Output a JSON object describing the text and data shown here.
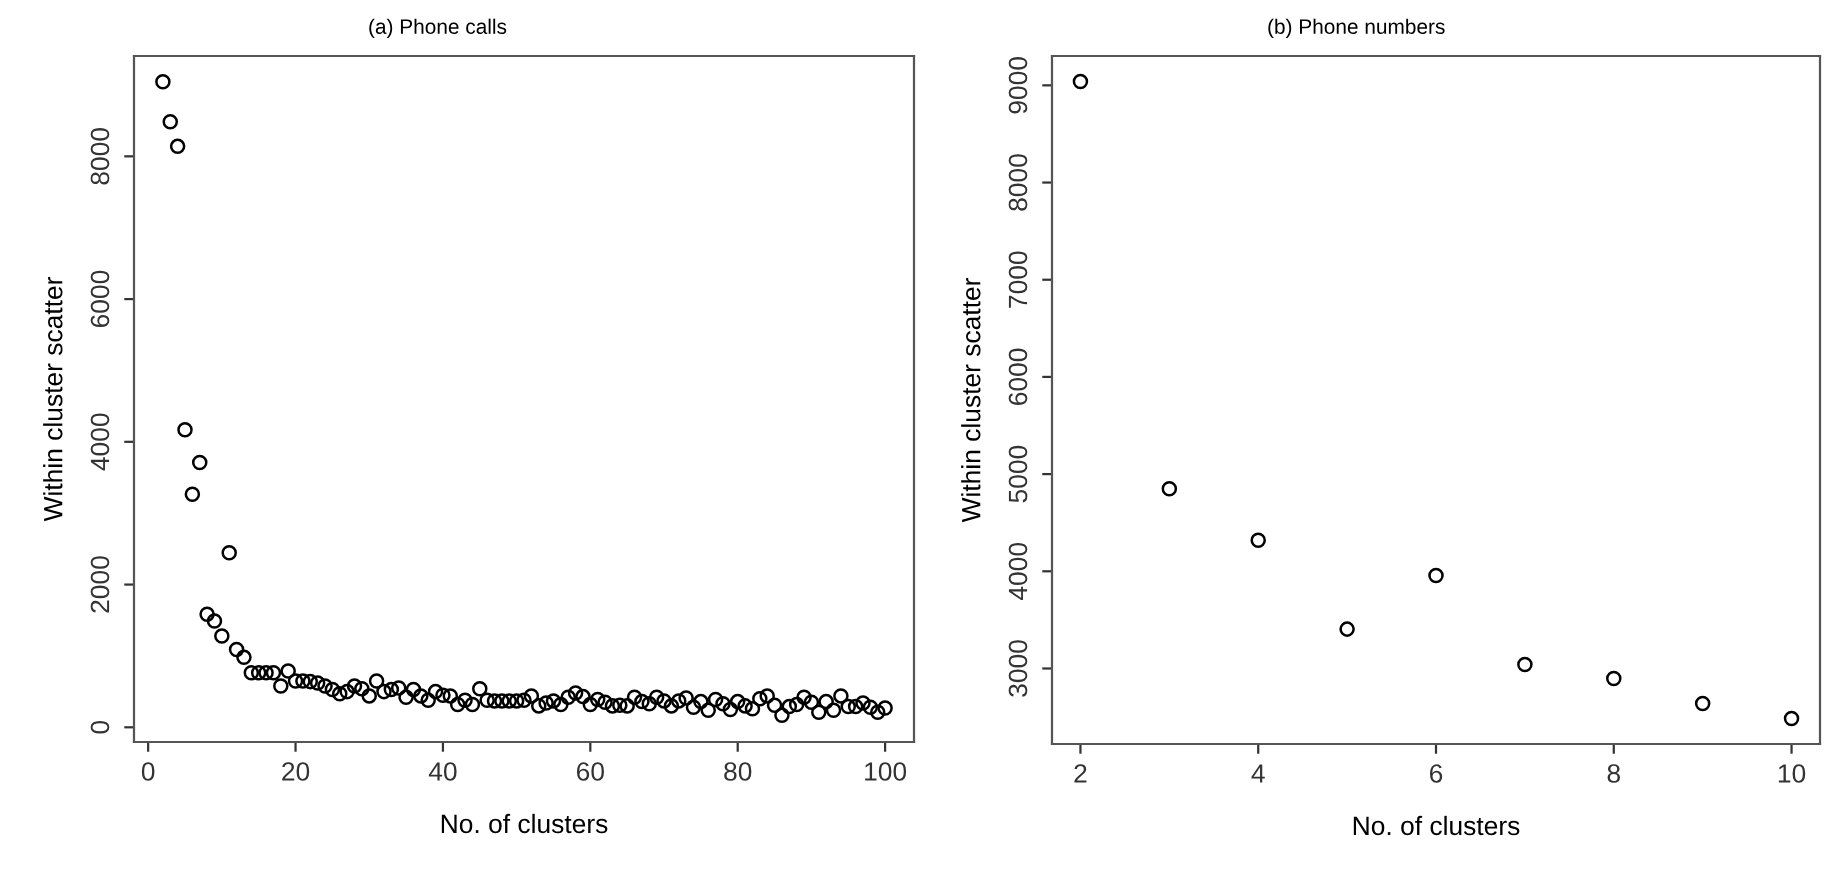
{
  "chart_data": [
    {
      "type": "scatter",
      "title": "(a) Phone calls",
      "xlabel": "No. of clusters",
      "ylabel": "Within cluster scatter",
      "x": [
        2,
        3,
        4,
        5,
        6,
        7,
        8,
        9,
        10,
        11,
        12,
        13,
        14,
        15,
        16,
        17,
        18,
        19,
        20,
        21,
        22,
        23,
        24,
        25,
        26,
        27,
        28,
        29,
        30,
        31,
        32,
        33,
        34,
        35,
        36,
        37,
        38,
        39,
        40,
        41,
        42,
        43,
        44,
        45,
        46,
        47,
        48,
        49,
        50,
        51,
        52,
        53,
        54,
        55,
        56,
        57,
        58,
        59,
        60,
        61,
        62,
        63,
        64,
        65,
        66,
        67,
        68,
        69,
        70,
        71,
        72,
        73,
        74,
        75,
        76,
        77,
        78,
        79,
        80,
        81,
        82,
        83,
        84,
        85,
        86,
        87,
        88,
        89,
        90,
        91,
        92,
        93,
        94,
        95,
        96,
        97,
        98,
        99,
        100
      ],
      "series": [
        {
          "color": "#000000",
          "values": [
            9045,
            8485,
            8140,
            4170,
            3265,
            3710,
            1585,
            1490,
            1280,
            2445,
            1090,
            980,
            765,
            765,
            765,
            765,
            580,
            790,
            650,
            650,
            640,
            620,
            580,
            530,
            470,
            500,
            580,
            540,
            440,
            650,
            500,
            530,
            550,
            420,
            530,
            440,
            380,
            500,
            450,
            440,
            320,
            380,
            320,
            540,
            380,
            370,
            370,
            370,
            370,
            380,
            440,
            300,
            340,
            370,
            320,
            420,
            480,
            430,
            320,
            390,
            350,
            300,
            310,
            300,
            420,
            360,
            330,
            420,
            370,
            300,
            370,
            410,
            280,
            360,
            240,
            390,
            330,
            250,
            360,
            300,
            260,
            400,
            440,
            310,
            170,
            290,
            320,
            420,
            350,
            210,
            360,
            240,
            440,
            290,
            290,
            340,
            280,
            210,
            270
          ]
        }
      ],
      "xlim": [
        -1.92,
        103.92
      ],
      "ylim": [
        -206,
        9406
      ],
      "xticks": [
        0,
        20,
        40,
        60,
        80,
        100
      ],
      "yticks": [
        0,
        2000,
        4000,
        6000,
        8000
      ],
      "marker": "circle",
      "grid": false,
      "legend": false
    },
    {
      "type": "scatter",
      "title": "(b) Phone numbers",
      "xlabel": "No. of clusters",
      "ylabel": "Within cluster scatter",
      "x": [
        2,
        3,
        4,
        5,
        6,
        7,
        8,
        9,
        10
      ],
      "series": [
        {
          "color": "#000000",
          "values": [
            9040,
            4850,
            4320,
            3405,
            3957,
            3040,
            2897,
            2640,
            2485
          ]
        }
      ],
      "xlim": [
        1.68,
        10.32
      ],
      "ylim": [
        2223,
        9302
      ],
      "xticks": [
        2,
        4,
        6,
        8,
        10
      ],
      "yticks": [
        3000,
        4000,
        5000,
        6000,
        7000,
        8000,
        9000
      ],
      "marker": "circle",
      "grid": false,
      "legend": false
    }
  ]
}
